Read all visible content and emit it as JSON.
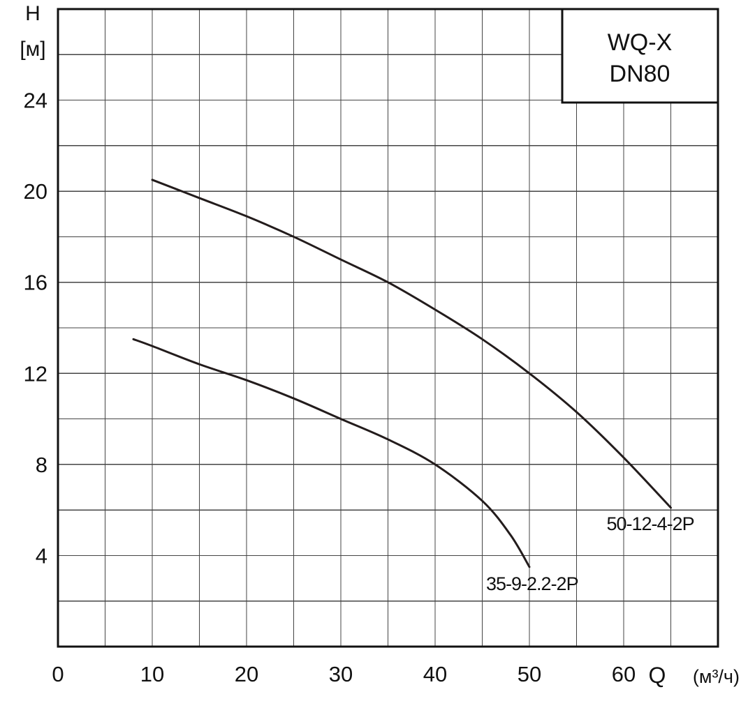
{
  "chart_data": {
    "type": "line",
    "title_lines": [
      "WQ-X",
      "DN80"
    ],
    "ylabel": "H",
    "ylabel_unit": "[м]",
    "xlabel_symbol": "Q",
    "xlabel_unit": "(м³/ч)",
    "xlim": [
      0,
      70
    ],
    "ylim": [
      0,
      28
    ],
    "x_ticks": [
      0,
      10,
      20,
      30,
      40,
      50,
      60
    ],
    "y_ticks": [
      4,
      8,
      12,
      16,
      20,
      24
    ],
    "grid": true,
    "title_position": "top-right",
    "series": [
      {
        "name": "50-12-4-2P",
        "points": [
          [
            10,
            20.5
          ],
          [
            15,
            19.7
          ],
          [
            20,
            18.9
          ],
          [
            25,
            18.0
          ],
          [
            30,
            17.0
          ],
          [
            35,
            16.0
          ],
          [
            40,
            14.8
          ],
          [
            45,
            13.5
          ],
          [
            50,
            12.0
          ],
          [
            55,
            10.3
          ],
          [
            60,
            8.3
          ],
          [
            65,
            6.1
          ]
        ]
      },
      {
        "name": "35-9-2.2-2P",
        "points": [
          [
            8,
            13.5
          ],
          [
            10,
            13.2
          ],
          [
            15,
            12.4
          ],
          [
            20,
            11.7
          ],
          [
            25,
            10.9
          ],
          [
            30,
            10.0
          ],
          [
            35,
            9.1
          ],
          [
            40,
            8.0
          ],
          [
            45,
            6.4
          ],
          [
            48,
            4.9
          ],
          [
            50,
            3.5
          ]
        ]
      }
    ]
  }
}
